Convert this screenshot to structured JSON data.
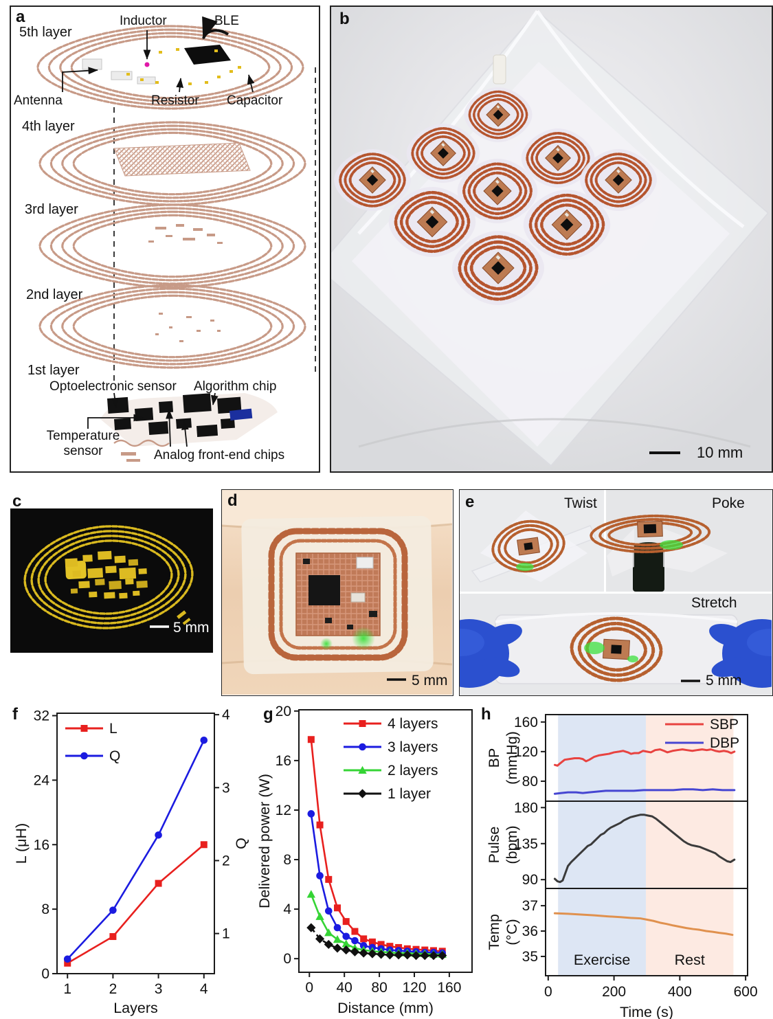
{
  "figure": {
    "panel_labels": {
      "a": "a",
      "b": "b",
      "c": "c",
      "d": "d",
      "e": "e",
      "f": "f",
      "g": "g",
      "h": "h"
    },
    "panel_a": {
      "layers": [
        "5th layer",
        "4th layer",
        "3rd layer",
        "2nd layer",
        "1st layer"
      ],
      "labels": {
        "inductor": "Inductor",
        "ble": "BLE",
        "antenna": "Antenna",
        "resistor": "Resistor",
        "capacitor": "Capacitor",
        "opto": "Optoelectronic sensor",
        "algorithm": "Algorithm chip",
        "temperature_line1": "Temperature",
        "temperature_line2": "sensor",
        "afe": "Analog front-end chips"
      }
    },
    "panel_b": {
      "scale_bar": "10 mm"
    },
    "panel_c": {
      "scale_bar": "5 mm"
    },
    "panel_d": {
      "scale_bar": "5 mm"
    },
    "panel_e": {
      "twist": "Twist",
      "poke": "Poke",
      "stretch": "Stretch",
      "scale_bar": "5 mm"
    }
  },
  "colors": {
    "copper": "#c79a87",
    "copper_dark": "#b5552f",
    "gold": "#d9b91f",
    "red": "#e8201e",
    "blue": "#1b1be0",
    "green": "#35d435",
    "black": "#111111",
    "sbp_red": "#e84340",
    "dbp_blue": "#4646d2",
    "pulse_gray": "#3b3b3b",
    "temp_orange": "#e0914e",
    "band_exercise": "#dde6f4",
    "band_rest": "#fdeae2",
    "glove_blue": "#2b50cf"
  },
  "chart_data": [
    {
      "id": "f",
      "type": "line",
      "xlabel": "Layers",
      "x": [
        1,
        2,
        3,
        4
      ],
      "xticks": [
        1,
        2,
        3,
        4
      ],
      "xlim": [
        0.77,
        4.23
      ],
      "left": {
        "label": "L (μH)",
        "lim": [
          0,
          32.3
        ],
        "ticks": [
          0,
          8,
          16,
          24,
          32
        ]
      },
      "right": {
        "label": "Q",
        "lim": [
          0.45,
          4.02
        ],
        "ticks": [
          1,
          2,
          3,
          4
        ]
      },
      "series": [
        {
          "name": "L",
          "axis": "left",
          "color": "#e8201e",
          "marker": "square",
          "values": [
            1.3,
            4.6,
            11.2,
            16.0
          ]
        },
        {
          "name": "Q",
          "axis": "right",
          "color": "#1b1be0",
          "marker": "circle",
          "values": [
            0.65,
            1.32,
            2.35,
            3.65
          ]
        }
      ],
      "legend_pos": "top-left"
    },
    {
      "id": "g",
      "type": "line",
      "xlabel": "Distance (mm)",
      "ylabel": "Delivered power (W)",
      "xlim": [
        -12,
        186
      ],
      "xticks": [
        0,
        40,
        80,
        120,
        160
      ],
      "ylim": [
        -1.1,
        20.1
      ],
      "yticks": [
        0,
        4,
        8,
        12,
        16,
        20
      ],
      "x": [
        2,
        12,
        22,
        32,
        42,
        52,
        62,
        72,
        82,
        92,
        102,
        112,
        122,
        132,
        142,
        152
      ],
      "series": [
        {
          "name": "4 layers",
          "color": "#e8201e",
          "marker": "square",
          "values": [
            17.7,
            10.8,
            6.4,
            4.1,
            3.0,
            2.2,
            1.6,
            1.35,
            1.15,
            1.0,
            0.9,
            0.8,
            0.75,
            0.7,
            0.65,
            0.6
          ]
        },
        {
          "name": "3 layers",
          "color": "#1b1be0",
          "marker": "circle",
          "values": [
            11.7,
            6.7,
            3.85,
            2.5,
            1.8,
            1.45,
            1.05,
            0.9,
            0.8,
            0.7,
            0.65,
            0.6,
            0.55,
            0.5,
            0.5,
            0.45
          ]
        },
        {
          "name": "2 layers",
          "color": "#35d435",
          "marker": "triangle",
          "values": [
            5.2,
            3.4,
            2.1,
            1.55,
            1.2,
            0.85,
            0.7,
            0.6,
            0.55,
            0.5,
            0.45,
            0.45,
            0.4,
            0.4,
            0.35,
            0.35
          ]
        },
        {
          "name": "1 layer",
          "color": "#111111",
          "marker": "diamond",
          "dash": "8 5",
          "values": [
            2.5,
            1.6,
            1.15,
            0.85,
            0.7,
            0.55,
            0.45,
            0.4,
            0.35,
            0.3,
            0.3,
            0.3,
            0.25,
            0.25,
            0.25,
            0.25
          ]
        }
      ],
      "legend_pos": "top-right"
    },
    {
      "id": "h",
      "type": "stacked-line",
      "xlabel": "Time (s)",
      "xlim": [
        -8,
        606
      ],
      "xticks": [
        0,
        200,
        400,
        600
      ],
      "bands": [
        {
          "label": "Exercise",
          "x0": 30,
          "x1": 297,
          "color": "#dde6f4"
        },
        {
          "label": "Rest",
          "x0": 297,
          "x1": 563,
          "color": "#fdeae2"
        }
      ],
      "subplots": [
        {
          "ylabel": [
            "BP",
            "(mmHg)"
          ],
          "lim": [
            53,
            170
          ],
          "ticks": [
            80,
            120,
            160
          ],
          "legend": true,
          "series": [
            {
              "name": "SBP",
              "color": "#e84340",
              "points": [
                [
                  20,
                  102
                ],
                [
                  28,
                  101
                ],
                [
                  36,
                  104
                ],
                [
                  50,
                  109
                ],
                [
                  65,
                  110
                ],
                [
                  80,
                  111
                ],
                [
                  95,
                  111
                ],
                [
                  105,
                  110
                ],
                [
                  115,
                  107
                ],
                [
                  125,
                  109
                ],
                [
                  140,
                  113
                ],
                [
                  155,
                  115
                ],
                [
                  170,
                  116
                ],
                [
                  185,
                  117
                ],
                [
                  200,
                  119
                ],
                [
                  215,
                  120
                ],
                [
                  228,
                  121
                ],
                [
                  242,
                  119
                ],
                [
                  252,
                  117
                ],
                [
                  262,
                  118
                ],
                [
                  275,
                  118
                ],
                [
                  288,
                  121
                ],
                [
                  300,
                  120
                ],
                [
                  312,
                  119
                ],
                [
                  325,
                  122
                ],
                [
                  340,
                  123
                ],
                [
                  352,
                  121
                ],
                [
                  362,
                  119
                ],
                [
                  378,
                  121
                ],
                [
                  392,
                  122
                ],
                [
                  408,
                  123
                ],
                [
                  422,
                  122
                ],
                [
                  438,
                  121
                ],
                [
                  452,
                  122
                ],
                [
                  468,
                  123
                ],
                [
                  482,
                  122
                ],
                [
                  495,
                  123
                ],
                [
                  508,
                  121
                ],
                [
                  520,
                  120
                ],
                [
                  534,
                  121
                ],
                [
                  546,
                  120
                ],
                [
                  556,
                  118
                ],
                [
                  566,
                  120
                ]
              ]
            },
            {
              "name": "DBP",
              "color": "#4646d2",
              "points": [
                [
                  20,
                  63
                ],
                [
                  40,
                  64
                ],
                [
                  60,
                  65
                ],
                [
                  85,
                  65
                ],
                [
                  105,
                  64
                ],
                [
                  125,
                  65
                ],
                [
                  150,
                  66
                ],
                [
                  175,
                  67
                ],
                [
                  200,
                  67
                ],
                [
                  230,
                  67
                ],
                [
                  260,
                  67
                ],
                [
                  290,
                  68
                ],
                [
                  320,
                  68
                ],
                [
                  350,
                  68
                ],
                [
                  380,
                  68
                ],
                [
                  410,
                  69
                ],
                [
                  440,
                  69
                ],
                [
                  470,
                  68
                ],
                [
                  500,
                  69
                ],
                [
                  530,
                  68
                ],
                [
                  566,
                  68
                ]
              ]
            }
          ]
        },
        {
          "ylabel": [
            "Pulse",
            "(bpm)"
          ],
          "lim": [
            79,
            188
          ],
          "ticks": [
            90,
            135,
            180
          ],
          "series": [
            {
              "name": "Pulse",
              "color": "#3b3b3b",
              "points": [
                [
                  20,
                  91
                ],
                [
                  28,
                  88
                ],
                [
                  36,
                  87
                ],
                [
                  44,
                  89
                ],
                [
                  52,
                  98
                ],
                [
                  60,
                  107
                ],
                [
                  70,
                  112
                ],
                [
                  80,
                  116
                ],
                [
                  90,
                  120
                ],
                [
                  100,
                  124
                ],
                [
                  110,
                  128
                ],
                [
                  120,
                  132
                ],
                [
                  130,
                  134
                ],
                [
                  140,
                  138
                ],
                [
                  150,
                  142
                ],
                [
                  160,
                  146
                ],
                [
                  170,
                  148
                ],
                [
                  180,
                  152
                ],
                [
                  190,
                  155
                ],
                [
                  200,
                  157
                ],
                [
                  210,
                  159
                ],
                [
                  220,
                  161
                ],
                [
                  230,
                  164
                ],
                [
                  240,
                  166
                ],
                [
                  250,
                  168
                ],
                [
                  260,
                  169
                ],
                [
                  270,
                  170
                ],
                [
                  280,
                  171
                ],
                [
                  292,
                  171
                ],
                [
                  304,
                  170
                ],
                [
                  316,
                  169
                ],
                [
                  328,
                  166
                ],
                [
                  340,
                  162
                ],
                [
                  352,
                  158
                ],
                [
                  364,
                  154
                ],
                [
                  376,
                  150
                ],
                [
                  388,
                  146
                ],
                [
                  400,
                  142
                ],
                [
                  412,
                  138
                ],
                [
                  424,
                  135
                ],
                [
                  436,
                  133
                ],
                [
                  448,
                  132
                ],
                [
                  460,
                  131
                ],
                [
                  472,
                  129
                ],
                [
                  484,
                  127
                ],
                [
                  496,
                  125
                ],
                [
                  508,
                  123
                ],
                [
                  520,
                  119
                ],
                [
                  532,
                  116
                ],
                [
                  544,
                  113
                ],
                [
                  554,
                  112
                ],
                [
                  566,
                  115
                ]
              ]
            }
          ]
        },
        {
          "ylabel": [
            "Temp",
            "(°C)"
          ],
          "lim": [
            34.24,
            37.68
          ],
          "ticks": [
            35,
            36,
            37
          ],
          "band_labels": true,
          "series": [
            {
              "name": "Temp",
              "color": "#e0914e",
              "points": [
                [
                  20,
                  36.7
                ],
                [
                  60,
                  36.68
                ],
                [
                  100,
                  36.65
                ],
                [
                  140,
                  36.62
                ],
                [
                  180,
                  36.58
                ],
                [
                  220,
                  36.55
                ],
                [
                  250,
                  36.52
                ],
                [
                  280,
                  36.5
                ],
                [
                  300,
                  36.45
                ],
                [
                  320,
                  36.4
                ],
                [
                  340,
                  36.33
                ],
                [
                  360,
                  36.28
                ],
                [
                  380,
                  36.22
                ],
                [
                  400,
                  36.17
                ],
                [
                  420,
                  36.12
                ],
                [
                  440,
                  36.08
                ],
                [
                  460,
                  36.05
                ],
                [
                  480,
                  36.0
                ],
                [
                  500,
                  35.97
                ],
                [
                  520,
                  35.93
                ],
                [
                  540,
                  35.9
                ],
                [
                  560,
                  35.85
                ]
              ]
            }
          ]
        }
      ]
    }
  ]
}
